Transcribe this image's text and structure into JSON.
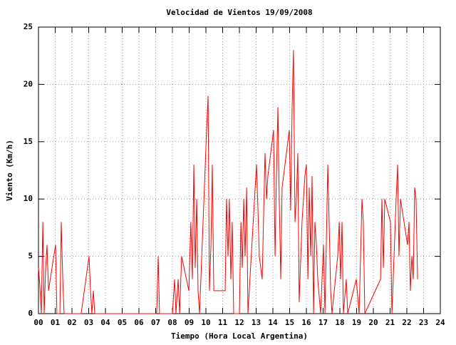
{
  "chart_data": {
    "type": "line",
    "title": "Velocidad de Vientos 19/09/2008",
    "x_label": "Tiempo (Hora Local Argentina)",
    "y_label": "Viento (Km/h)",
    "xlim": [
      0,
      24
    ],
    "ylim": [
      0,
      25
    ],
    "xticks": [
      {
        "value": 0,
        "label": "00"
      },
      {
        "value": 1,
        "label": "01"
      },
      {
        "value": 2,
        "label": "02"
      },
      {
        "value": 3,
        "label": "03"
      },
      {
        "value": 4,
        "label": "04"
      },
      {
        "value": 5,
        "label": "05"
      },
      {
        "value": 6,
        "label": "06"
      },
      {
        "value": 7,
        "label": "07"
      },
      {
        "value": 8,
        "label": "08"
      },
      {
        "value": 9,
        "label": "09"
      },
      10,
      11,
      12,
      13,
      14,
      15,
      16,
      17,
      18,
      19,
      20,
      21,
      22,
      23,
      24
    ],
    "yticks": [
      0,
      5,
      10,
      15,
      20,
      25
    ],
    "grid": true,
    "x": [
      0.0,
      0.08,
      0.17,
      0.26,
      0.34,
      0.43,
      0.51,
      0.6,
      1.02,
      1.1,
      1.28,
      1.36,
      1.45,
      1.53,
      2.55,
      3.02,
      3.11,
      3.19,
      3.28,
      3.36,
      7.06,
      7.15,
      7.23,
      8.0,
      8.13,
      8.21,
      8.34,
      8.43,
      8.55,
      8.98,
      9.1,
      9.19,
      9.28,
      9.36,
      9.45,
      9.53,
      9.62,
      10.04,
      10.13,
      10.21,
      10.3,
      10.38,
      10.47,
      11.15,
      11.23,
      11.32,
      11.4,
      11.49,
      11.57,
      11.66,
      12.0,
      12.09,
      12.17,
      12.26,
      12.34,
      12.43,
      12.51,
      13.02,
      13.11,
      13.19,
      13.36,
      13.53,
      13.62,
      13.7,
      14.04,
      14.13,
      14.21,
      14.3,
      14.38,
      14.47,
      14.55,
      14.98,
      15.06,
      15.15,
      15.23,
      15.32,
      15.4,
      15.49,
      15.57,
      15.74,
      15.91,
      16.0,
      16.09,
      16.17,
      16.26,
      16.34,
      16.43,
      16.51,
      16.6,
      16.68,
      16.85,
      17.02,
      17.11,
      17.28,
      17.36,
      17.45,
      17.53,
      17.87,
      17.96,
      18.04,
      18.13,
      18.21,
      18.38,
      18.47,
      18.98,
      19.15,
      19.32,
      19.4,
      19.49,
      20.43,
      20.51,
      20.6,
      20.68,
      21.02,
      21.11,
      21.36,
      21.45,
      21.53,
      21.62,
      22.04,
      22.13,
      22.21,
      22.3,
      22.38,
      22.47,
      22.55,
      22.64
    ],
    "series": [
      {
        "color": "#ff0000",
        "values": [
          4,
          2.5,
          0,
          8,
          0,
          4,
          6,
          2,
          6,
          0,
          0,
          8,
          3,
          0,
          0,
          5,
          2,
          0,
          2,
          0,
          0,
          5,
          0,
          0,
          3,
          0,
          3,
          0,
          5,
          2,
          8,
          3,
          13,
          4,
          10,
          2,
          0,
          16,
          19,
          2,
          6,
          13,
          2,
          2,
          10,
          5,
          10,
          3,
          8,
          0,
          0,
          8,
          4,
          10,
          5,
          11,
          0,
          13,
          9,
          5,
          3,
          14,
          10,
          12,
          16,
          5,
          12,
          18,
          10,
          3,
          11,
          16,
          9,
          18,
          23,
          8,
          10,
          14,
          1,
          8,
          12,
          13,
          3,
          11,
          5,
          12,
          0,
          8,
          6,
          3,
          0,
          6,
          0,
          13,
          8,
          2,
          0,
          5,
          8,
          3,
          8,
          0,
          3,
          0,
          3,
          0,
          10,
          8,
          0,
          3,
          10,
          4,
          10,
          8,
          0,
          10,
          13,
          5,
          10,
          6,
          8,
          2,
          5,
          3,
          11,
          10,
          3
        ]
      }
    ]
  }
}
